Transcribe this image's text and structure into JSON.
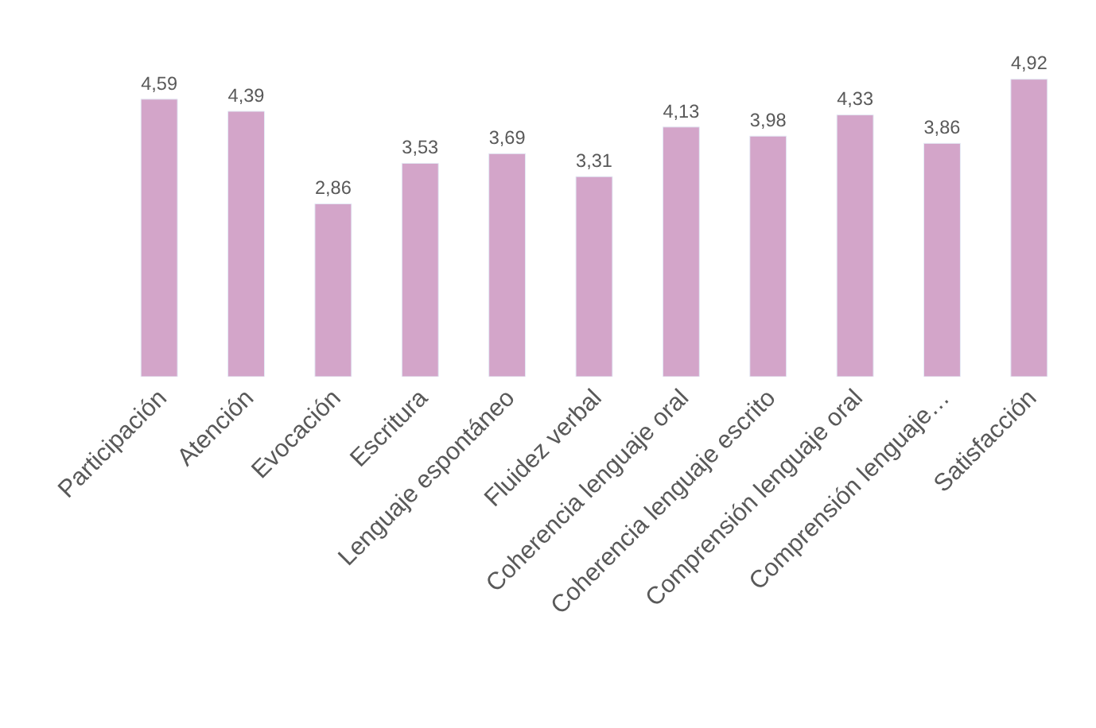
{
  "chart_data": {
    "type": "bar",
    "categories": [
      "Participación",
      "Atención",
      "Evocación",
      "Escritura",
      "Lenguaje espontáneo",
      "Fluidez verbal",
      "Coherencia lenguaje oral",
      "Coherencia lenguaje escrito",
      "Comprensión lenguaje oral",
      "Comprensión lenguaje…",
      "Satisfacción"
    ],
    "values": [
      4.59,
      4.39,
      2.86,
      3.53,
      3.69,
      3.31,
      4.13,
      3.98,
      4.33,
      3.86,
      4.92
    ],
    "value_labels": [
      "4,59",
      "4,39",
      "2,86",
      "3,53",
      "3,69",
      "3,31",
      "4,13",
      "3,98",
      "4,33",
      "3,86",
      "4,92"
    ],
    "color": "#d3a5c9",
    "tick_labels": "x"
  }
}
